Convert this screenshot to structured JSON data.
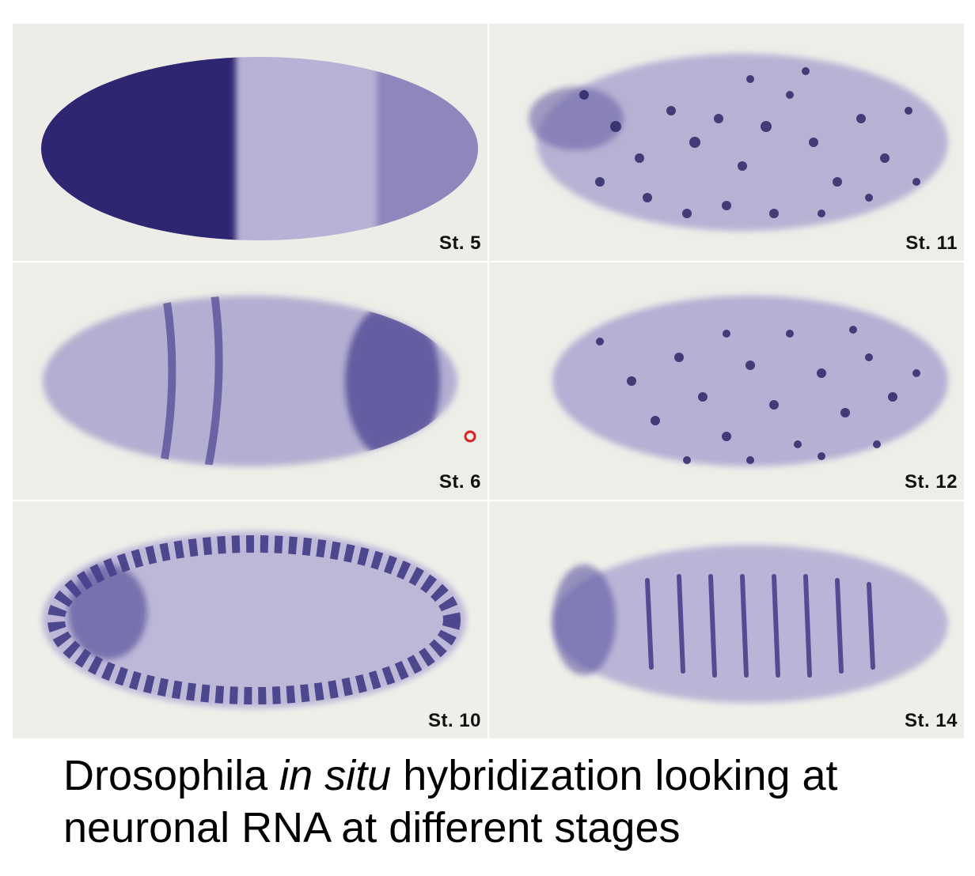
{
  "panels": [
    {
      "stage": "St. 5"
    },
    {
      "stage": "St. 11"
    },
    {
      "stage": "St. 6"
    },
    {
      "stage": "St. 12"
    },
    {
      "stage": "St. 10"
    },
    {
      "stage": "St. 14"
    }
  ],
  "caption": {
    "part1": "Drosophila ",
    "part2": "in situ",
    "part3": " hybridization looking at neuronal RNA at different stages"
  },
  "colors": {
    "stain_dark": "#2e2768",
    "stain_light": "#b9b4d6",
    "background": "#ecebe5"
  }
}
